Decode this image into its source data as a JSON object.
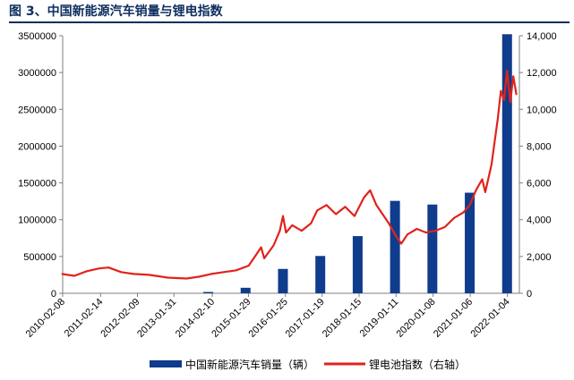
{
  "title": "图 3、中国新能源汽车销量与锂电指数",
  "colors": {
    "bar": "#0f3c8c",
    "line": "#e0231c",
    "title": "#0f2e60",
    "axis": "#7f7f7f"
  },
  "chart_data": {
    "type": "bar",
    "x_axis_labels": [
      "2010-02-08",
      "2011-02-14",
      "2012-02-09",
      "2013-01-31",
      "2014-02-10",
      "2015-01-29",
      "2016-01-25",
      "2017-01-19",
      "2018-01-15",
      "2019-01-11",
      "2020-01-08",
      "2021-01-06",
      "2022-01-04"
    ],
    "y_left": {
      "ticks": [
        0,
        500000,
        1000000,
        1500000,
        2000000,
        2500000,
        3000000,
        3500000
      ],
      "tick_labels": [
        "0",
        "500000",
        "1000000",
        "1500000",
        "2000000",
        "2500000",
        "3000000",
        "3500000"
      ],
      "range": [
        0,
        3500000
      ]
    },
    "y_right": {
      "ticks": [
        0,
        2000,
        4000,
        6000,
        8000,
        10000,
        12000,
        14000
      ],
      "tick_labels": [
        "0",
        "2,000",
        "4,000",
        "6,000",
        "8,000",
        "10,000",
        "12,000",
        "14,000"
      ],
      "range": [
        0,
        14000
      ]
    },
    "series": [
      {
        "name": "中国新能源汽车销量（辆）",
        "kind": "bar",
        "axis": "left",
        "points": [
          {
            "x": "2013",
            "y": 17600
          },
          {
            "x": "2014",
            "y": 74800
          },
          {
            "x": "2015",
            "y": 331000
          },
          {
            "x": "2016",
            "y": 507000
          },
          {
            "x": "2017",
            "y": 777000
          },
          {
            "x": "2018",
            "y": 1256000
          },
          {
            "x": "2019",
            "y": 1206000
          },
          {
            "x": "2020",
            "y": 1367000
          },
          {
            "x": "2021",
            "y": 3521000
          }
        ]
      },
      {
        "name": "锂电池指数（右轴）",
        "kind": "line",
        "axis": "right",
        "points": [
          {
            "x": "2010-02",
            "y": 1050
          },
          {
            "x": "2010-06",
            "y": 950
          },
          {
            "x": "2010-10",
            "y": 1200
          },
          {
            "x": "2011-02",
            "y": 1350
          },
          {
            "x": "2011-05",
            "y": 1400
          },
          {
            "x": "2011-09",
            "y": 1150
          },
          {
            "x": "2012-01",
            "y": 1050
          },
          {
            "x": "2012-06",
            "y": 1000
          },
          {
            "x": "2012-12",
            "y": 850
          },
          {
            "x": "2013-06",
            "y": 800
          },
          {
            "x": "2013-10",
            "y": 900
          },
          {
            "x": "2014-02",
            "y": 1050
          },
          {
            "x": "2014-06",
            "y": 1150
          },
          {
            "x": "2014-10",
            "y": 1250
          },
          {
            "x": "2015-02",
            "y": 1500
          },
          {
            "x": "2015-04",
            "y": 2000
          },
          {
            "x": "2015-06",
            "y": 2500
          },
          {
            "x": "2015-07",
            "y": 1900
          },
          {
            "x": "2015-10",
            "y": 2600
          },
          {
            "x": "2015-12",
            "y": 3400
          },
          {
            "x": "2016-01",
            "y": 4200
          },
          {
            "x": "2016-02",
            "y": 3300
          },
          {
            "x": "2016-04",
            "y": 3700
          },
          {
            "x": "2016-07",
            "y": 3400
          },
          {
            "x": "2016-10",
            "y": 3800
          },
          {
            "x": "2016-12",
            "y": 4500
          },
          {
            "x": "2017-03",
            "y": 4800
          },
          {
            "x": "2017-06",
            "y": 4300
          },
          {
            "x": "2017-09",
            "y": 4700
          },
          {
            "x": "2017-12",
            "y": 4200
          },
          {
            "x": "2018-03",
            "y": 5200
          },
          {
            "x": "2018-05",
            "y": 5600
          },
          {
            "x": "2018-07",
            "y": 4800
          },
          {
            "x": "2018-09",
            "y": 4300
          },
          {
            "x": "2018-11",
            "y": 3800
          },
          {
            "x": "2019-01",
            "y": 3200
          },
          {
            "x": "2019-03",
            "y": 2700
          },
          {
            "x": "2019-05",
            "y": 3200
          },
          {
            "x": "2019-08",
            "y": 3500
          },
          {
            "x": "2019-11",
            "y": 3300
          },
          {
            "x": "2020-02",
            "y": 3400
          },
          {
            "x": "2020-05",
            "y": 3600
          },
          {
            "x": "2020-08",
            "y": 4100
          },
          {
            "x": "2020-11",
            "y": 4400
          },
          {
            "x": "2021-01",
            "y": 4800
          },
          {
            "x": "2021-03",
            "y": 5600
          },
          {
            "x": "2021-05",
            "y": 6200
          },
          {
            "x": "2021-06",
            "y": 5500
          },
          {
            "x": "2021-08",
            "y": 7000
          },
          {
            "x": "2021-10",
            "y": 9500
          },
          {
            "x": "2021-11",
            "y": 11000
          },
          {
            "x": "2021-12",
            "y": 10500
          },
          {
            "x": "2022-01",
            "y": 12100
          },
          {
            "x": "2022-02",
            "y": 10400
          },
          {
            "x": "2022-03",
            "y": 11800
          },
          {
            "x": "2022-04",
            "y": 10800
          }
        ]
      }
    ],
    "legend_position": "bottom",
    "grid": false
  }
}
